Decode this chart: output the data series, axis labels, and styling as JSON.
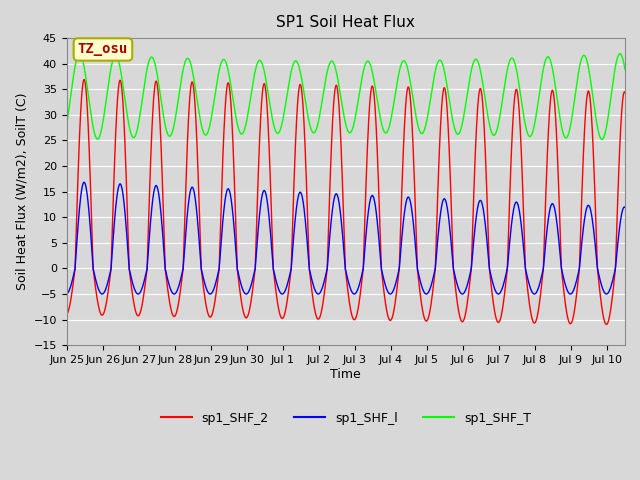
{
  "title": "SP1 Soil Heat Flux",
  "xlabel": "Time",
  "ylabel": "Soil Heat Flux (W/m2), SoilT (C)",
  "ylim": [
    -15,
    45
  ],
  "bg_color": "#e8e8e8",
  "plot_bg_color": "#d8d8d8",
  "grid_color": "white",
  "annotation_text": "TZ_osu",
  "annotation_bg": "#ffffcc",
  "annotation_border": "#aaaa00",
  "annotation_text_color": "#aa0000",
  "legend_labels": [
    "sp1_SHF_2",
    "sp1_SHF_l",
    "sp1_SHF_T"
  ],
  "legend_colors": [
    "red",
    "blue",
    "lime"
  ],
  "xtick_labels": [
    "Jun 25",
    "Jun 26",
    "Jun 27",
    "Jun 28",
    "Jun 29",
    "Jun 30",
    "Jul 1",
    "Jul 2",
    "Jul 3",
    "Jul 4",
    "Jul 5",
    "Jul 6",
    "Jul 7",
    "Jul 8",
    "Jul 9",
    "Jul 10"
  ],
  "num_days": 15.5,
  "start_day": 0,
  "shf2_amplitude_base": 37,
  "shf1_amplitude_base": 17,
  "shft_min": 25,
  "shft_max": 42,
  "shf2_min_base": -9,
  "shf1_min_base": -5
}
